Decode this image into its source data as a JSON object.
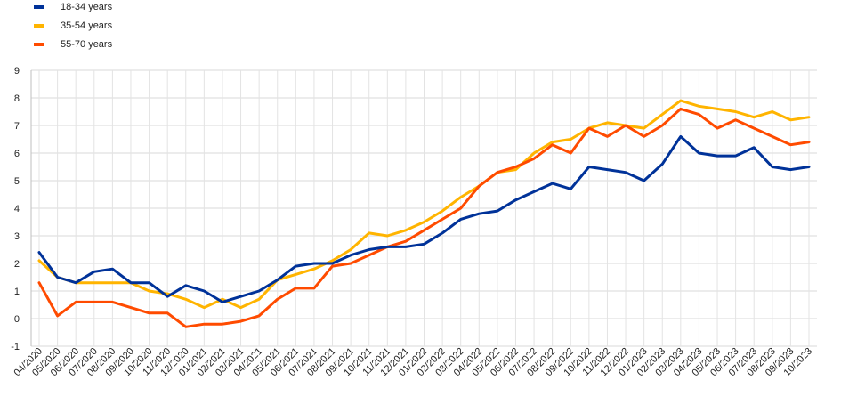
{
  "chart_data": {
    "type": "line",
    "title": "",
    "xlabel": "",
    "ylabel": "",
    "ylim": [
      -1,
      9
    ],
    "yticks": [
      -1,
      0,
      1,
      2,
      3,
      4,
      5,
      6,
      7,
      8,
      9
    ],
    "grid": true,
    "legend_position": "top-left",
    "categories": [
      "04/2020",
      "05/2020",
      "06/2020",
      "07/2020",
      "08/2020",
      "09/2020",
      "10/2020",
      "11/2020",
      "12/2020",
      "01/2021",
      "02/2021",
      "03/2021",
      "04/2021",
      "05/2021",
      "06/2021",
      "07/2021",
      "08/2021",
      "09/2021",
      "10/2021",
      "11/2021",
      "12/2021",
      "01/2022",
      "02/2022",
      "03/2022",
      "04/2022",
      "05/2022",
      "06/2022",
      "07/2022",
      "08/2022",
      "09/2022",
      "10/2022",
      "11/2022",
      "12/2022",
      "01/2023",
      "02/2023",
      "03/2023",
      "04/2023",
      "05/2023",
      "06/2023",
      "07/2023",
      "08/2023",
      "09/2023",
      "10/2023"
    ],
    "series": [
      {
        "name": "18-34 years",
        "color": "#003299",
        "values": [
          2.4,
          1.5,
          1.3,
          1.7,
          1.8,
          1.3,
          1.3,
          0.8,
          1.2,
          1.0,
          0.6,
          0.8,
          1.0,
          1.4,
          1.9,
          2.0,
          2.0,
          2.3,
          2.5,
          2.6,
          2.6,
          2.7,
          3.1,
          3.6,
          3.8,
          3.9,
          4.3,
          4.6,
          4.9,
          4.7,
          5.5,
          5.4,
          5.3,
          5.0,
          5.6,
          6.6,
          6.0,
          5.9,
          5.9,
          6.2,
          5.5,
          5.4,
          5.5
        ]
      },
      {
        "name": "35-54 years",
        "color": "#FFB400",
        "values": [
          2.1,
          1.5,
          1.3,
          1.3,
          1.3,
          1.3,
          1.0,
          0.9,
          0.7,
          0.4,
          0.7,
          0.4,
          0.7,
          1.4,
          1.6,
          1.8,
          2.1,
          2.5,
          3.1,
          3.0,
          3.2,
          3.5,
          3.9,
          4.4,
          4.8,
          5.3,
          5.4,
          6.0,
          6.4,
          6.5,
          6.9,
          7.1,
          7.0,
          6.9,
          7.4,
          7.9,
          7.7,
          7.6,
          7.5,
          7.3,
          7.5,
          7.2,
          7.3
        ]
      },
      {
        "name": "55-70 years",
        "color": "#FF4B00",
        "values": [
          1.3,
          0.1,
          0.6,
          0.6,
          0.6,
          0.4,
          0.2,
          0.2,
          -0.3,
          -0.2,
          -0.2,
          -0.1,
          0.1,
          0.7,
          1.1,
          1.1,
          1.9,
          2.0,
          2.3,
          2.6,
          2.8,
          3.2,
          3.6,
          4.0,
          4.8,
          5.3,
          5.5,
          5.8,
          6.3,
          6.0,
          6.9,
          6.6,
          7.0,
          6.6,
          7.0,
          7.6,
          7.4,
          6.9,
          7.2,
          6.9,
          6.6,
          6.3,
          6.4
        ]
      }
    ]
  }
}
